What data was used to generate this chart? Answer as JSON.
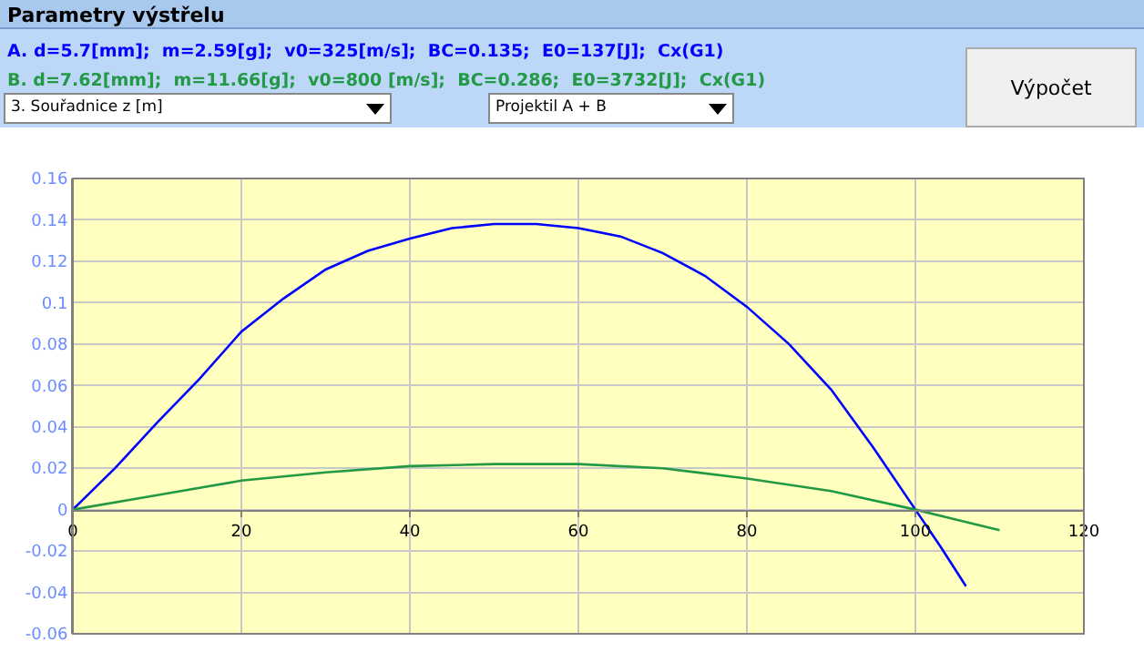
{
  "chart_data": {
    "type": "line",
    "title": "Parametry výstřelu",
    "annotations": [
      "3. Souřadnice z [m]",
      "Projektil A + B",
      "Výpočet"
    ],
    "xlim": [
      0,
      120
    ],
    "xticks": [
      0,
      20,
      40,
      60,
      80,
      100,
      120
    ],
    "ylim": [
      -0.06,
      0.16
    ],
    "yticks": [
      -0.06,
      -0.04,
      -0.02,
      0,
      0.02,
      0.04,
      0.06,
      0.08,
      0.1,
      0.12,
      0.14,
      0.16
    ],
    "grid": true,
    "series": [
      {
        "name": "A. d=5.7[mm];  m=2.59[g];  v0=325[m/s];  BC=0.135;  E0=137[J];  Cx(G1)",
        "color": "#0000ff",
        "x": [
          0,
          5,
          10,
          15,
          20,
          25,
          30,
          35,
          40,
          45,
          50,
          55,
          60,
          65,
          70,
          75,
          80,
          85,
          90,
          95,
          100,
          103,
          106
        ],
        "values": [
          0,
          0.02,
          0.042,
          0.063,
          0.086,
          0.102,
          0.116,
          0.125,
          0.131,
          0.136,
          0.138,
          0.138,
          0.136,
          0.132,
          0.124,
          0.113,
          0.098,
          0.08,
          0.058,
          0.03,
          0,
          -0.018,
          -0.037
        ]
      },
      {
        "name": "B. d=7.62[mm];  m=11.66[g];  v0=800 [m/s];  BC=0.286;  E0=3732[J];  Cx(G1)",
        "color": "#229944",
        "x": [
          0,
          10,
          20,
          30,
          40,
          50,
          60,
          70,
          80,
          90,
          100,
          105,
          110
        ],
        "values": [
          0,
          0.007,
          0.014,
          0.018,
          0.021,
          0.022,
          0.022,
          0.02,
          0.015,
          0.009,
          0,
          -0.005,
          -0.01
        ]
      }
    ]
  }
}
